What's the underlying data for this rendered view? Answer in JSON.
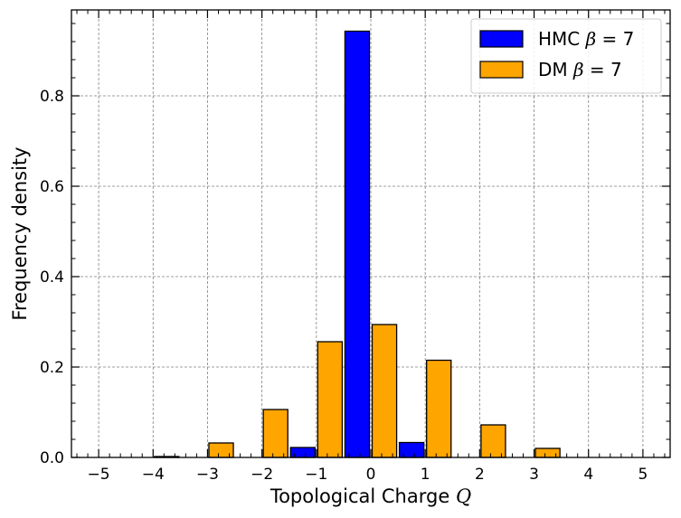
{
  "chart_data": {
    "type": "bar",
    "xlabel": "Topological Charge",
    "xlabel_symbol": "Q",
    "ylabel": "Frequency density",
    "xlim": [
      -5.5,
      5.5
    ],
    "ylim": [
      0,
      0.99
    ],
    "x_ticks": [
      -5,
      -4,
      -3,
      -2,
      -1,
      0,
      1,
      2,
      3,
      4,
      5
    ],
    "x_tick_labels": [
      "−5",
      "−4",
      "−3",
      "−2",
      "−1",
      "0",
      "1",
      "2",
      "3",
      "4",
      "5"
    ],
    "y_ticks": [
      0,
      0.2,
      0.4,
      0.6,
      0.8
    ],
    "y_tick_labels": [
      "0.0",
      "0.2",
      "0.4",
      "0.6",
      "0.8"
    ],
    "grid": true,
    "legend_position": "top-right",
    "series": [
      {
        "name": "HMC β = 7",
        "name_prefix": "HMC",
        "name_symbol": "β",
        "name_suffix": " = 7",
        "color": "#0000ff",
        "x": [
          -4,
          -3,
          -2,
          -1,
          0,
          1,
          2,
          3,
          4
        ],
        "values": [
          0.0,
          0.0,
          0.0,
          0.022,
          0.943,
          0.033,
          0.0,
          0.0,
          0.0
        ]
      },
      {
        "name": "DM β = 7",
        "name_prefix": "DM",
        "name_symbol": "β",
        "name_suffix": " = 7",
        "color": "#ffa500",
        "x": [
          -4,
          -3,
          -2,
          -1,
          0,
          1,
          2,
          3,
          4
        ],
        "values": [
          0.002,
          0.032,
          0.106,
          0.256,
          0.294,
          0.215,
          0.072,
          0.02,
          0.0
        ]
      }
    ]
  }
}
